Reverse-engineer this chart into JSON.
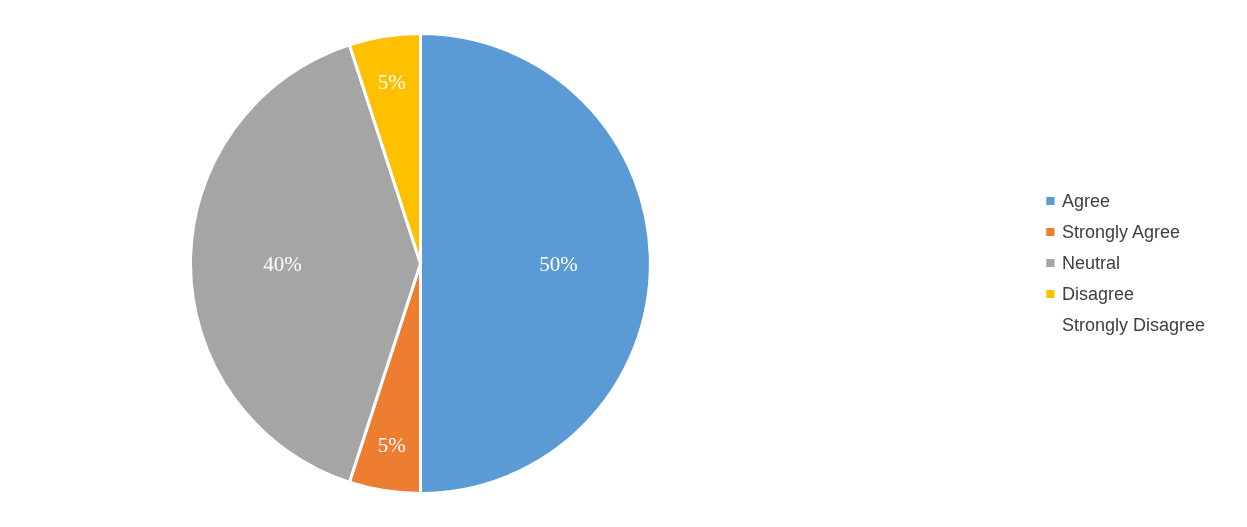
{
  "chart_data": {
    "type": "pie",
    "categories": [
      "Agree",
      "Strongly Agree",
      "Neutral",
      "Disagree",
      "Strongly Disagree"
    ],
    "values": [
      50,
      5,
      40,
      5,
      0
    ],
    "colors": [
      "#5b9bd5",
      "#ed7d31",
      "#a5a5a5",
      "#ffc000",
      "#4472c4"
    ],
    "value_labels": [
      "50%",
      "5%",
      "40%",
      "5%",
      null
    ],
    "legend": "right"
  }
}
